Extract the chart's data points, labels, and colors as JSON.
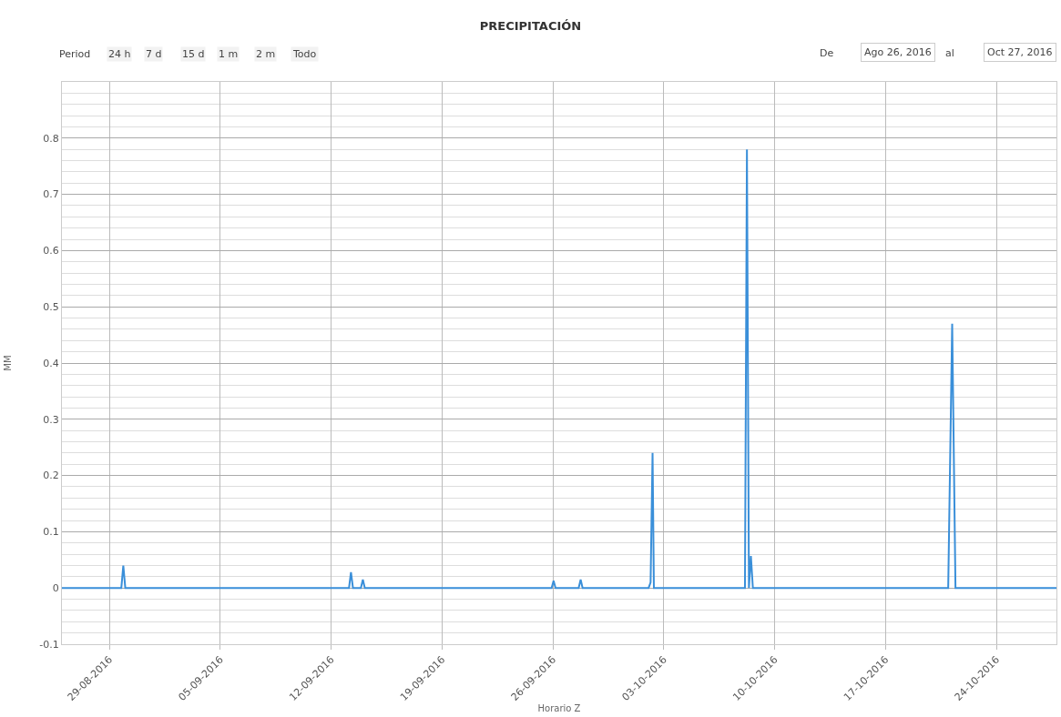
{
  "chart_data": {
    "type": "line",
    "title": "PRECIPITACIÓN",
    "xlabel": "Horario Z",
    "ylabel": "MM",
    "annotations": [
      "Period",
      "24 h",
      "7 d",
      "15 d",
      "1 m",
      "2 m",
      "Todo",
      "De",
      "Ago 26, 2016",
      "al",
      "Oct 27, 2016"
    ],
    "series": [
      {
        "color": "#3a8fd9",
        "x": [
          "2016-08-26T00:00",
          "2016-08-29T18:00",
          "2016-08-29T21:00",
          "2016-08-30T00:00",
          "2016-09-13T03:00",
          "2016-09-13T06:00",
          "2016-09-13T09:00",
          "2016-09-13T21:00",
          "2016-09-14T00:00",
          "2016-09-14T03:00",
          "2016-09-25T22:00",
          "2016-09-26T01:00",
          "2016-09-26T04:00",
          "2016-09-27T15:00",
          "2016-09-27T18:00",
          "2016-09-27T21:00",
          "2016-10-02T01:00",
          "2016-10-02T04:00",
          "2016-10-02T07:00",
          "2016-10-02T09:00",
          "2016-10-08T03:00",
          "2016-10-08T06:00",
          "2016-10-08T09:00",
          "2016-10-08T12:00",
          "2016-10-08T15:00",
          "2016-10-20T23:00",
          "2016-10-21T05:00",
          "2016-10-21T10:00",
          "2016-10-27T19:00"
        ],
        "values": [
          0,
          0,
          0.04,
          0,
          0,
          0.028,
          0,
          0,
          0.015,
          0,
          0,
          0.013,
          0,
          0,
          0.015,
          0,
          0,
          0.01,
          0.24,
          0,
          0,
          0.78,
          0,
          0.057,
          0,
          0,
          0.47,
          0,
          0
        ]
      }
    ],
    "xlim": [
      "2016-08-26",
      "2016-10-27T19:00"
    ],
    "xticks": [
      {
        "value": "2016-08-29",
        "label": "29-08-2016"
      },
      {
        "value": "2016-09-05",
        "label": "05-09-2016"
      },
      {
        "value": "2016-09-12",
        "label": "12-09-2016"
      },
      {
        "value": "2016-09-19",
        "label": "19-09-2016"
      },
      {
        "value": "2016-09-26",
        "label": "26-09-2016"
      },
      {
        "value": "2016-10-03",
        "label": "03-10-2016"
      },
      {
        "value": "2016-10-10",
        "label": "10-10-2016"
      },
      {
        "value": "2016-10-17",
        "label": "17-10-2016"
      },
      {
        "value": "2016-10-24",
        "label": "24-10-2016"
      }
    ],
    "ylim": [
      -0.1,
      0.9
    ],
    "yticks": [
      -0.1,
      0,
      0.1,
      0.2,
      0.3,
      0.4,
      0.5,
      0.6,
      0.7,
      0.8
    ],
    "grid": true,
    "marker": "none",
    "line_style": "solid"
  }
}
